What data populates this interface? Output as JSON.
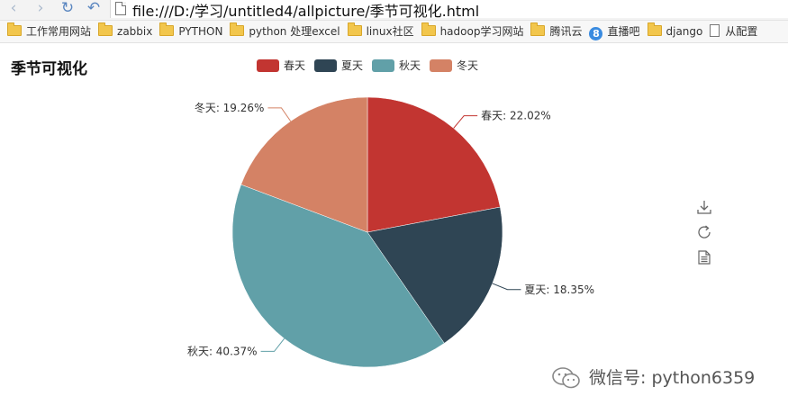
{
  "browser": {
    "url": "file:///D:/学习/untitled4/allpicture/季节可视化.html",
    "nav_icons": [
      "back-icon",
      "forward-icon",
      "refresh-icon",
      "undo-icon"
    ],
    "bookmarks": [
      {
        "label": "工作常用网站",
        "icon": "folder-icon"
      },
      {
        "label": "zabbix",
        "icon": "folder-icon"
      },
      {
        "label": "PYTHON",
        "icon": "folder-icon"
      },
      {
        "label": "python 处理excel",
        "icon": "folder-icon"
      },
      {
        "label": "linux社区",
        "icon": "folder-icon"
      },
      {
        "label": "hadoop学习网站",
        "icon": "folder-icon"
      },
      {
        "label": "腾讯云",
        "icon": "folder-icon"
      },
      {
        "label": "直播吧",
        "icon": "circle-8-icon"
      },
      {
        "label": "django",
        "icon": "folder-icon"
      },
      {
        "label": "从配置",
        "icon": "page-icon"
      }
    ]
  },
  "toolbox": {
    "icons": [
      "download-icon",
      "restore-icon",
      "data-view-icon"
    ]
  },
  "watermark": {
    "text": "微信号: python6359",
    "icon": "wechat-icon"
  },
  "chart_data": {
    "type": "pie",
    "title": "季节可视化",
    "legend_position": "top-center",
    "categories": [
      "春天",
      "夏天",
      "秋天",
      "冬天"
    ],
    "values": [
      22.02,
      18.35,
      40.37,
      19.26
    ],
    "labels": [
      "春天: 22.02%",
      "夏天: 18.35%",
      "秋天: 40.37%",
      "冬天: 19.26%"
    ],
    "colors": [
      "#c23531",
      "#2f4554",
      "#61a0a8",
      "#d48265"
    ],
    "start_angle_deg": 90,
    "direction": "clockwise"
  }
}
